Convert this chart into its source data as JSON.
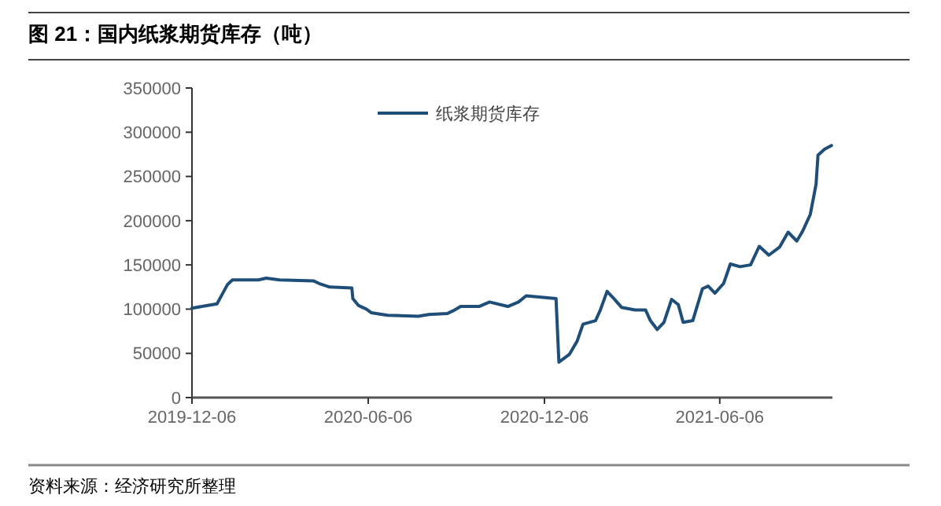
{
  "chart_data": {
    "type": "line",
    "title": "图 21：国内纸浆期货库存（吨）",
    "annotations": [
      "资料来源：经济研究所整理"
    ],
    "xlim": [
      "2019-12-06",
      "2021-10-01"
    ],
    "xticks": [
      "2019-12-06",
      "2020-06-06",
      "2020-12-06",
      "2021-06-06"
    ],
    "ylim": [
      0,
      350000
    ],
    "yticks": [
      0,
      50000,
      100000,
      150000,
      200000,
      250000,
      300000,
      350000
    ],
    "grid": false,
    "legend": "top",
    "line_style": "solid",
    "marker": "none",
    "series": [
      {
        "name": "纸浆期货库存",
        "color": "#1f4e79",
        "x": [
          "2019-12-06",
          "2019-12-21",
          "2020-01-01",
          "2020-01-06",
          "2020-01-12",
          "2020-01-17",
          "2020-02-13",
          "2020-02-21",
          "2020-03-06",
          "2020-04-10",
          "2020-04-16",
          "2020-04-27",
          "2020-05-20",
          "2020-05-21",
          "2020-05-27",
          "2020-06-04",
          "2020-06-09",
          "2020-06-26",
          "2020-07-28",
          "2020-08-08",
          "2020-08-27",
          "2020-09-02",
          "2020-09-10",
          "2020-09-29",
          "2020-10-10",
          "2020-10-29",
          "2020-11-09",
          "2020-11-17",
          "2020-12-18",
          "2020-12-21",
          "2021-01-01",
          "2021-01-09",
          "2021-01-15",
          "2021-01-28",
          "2021-02-02",
          "2021-02-09",
          "2021-02-16",
          "2021-02-24",
          "2021-03-10",
          "2021-03-21",
          "2021-03-26",
          "2021-04-02",
          "2021-04-09",
          "2021-04-17",
          "2021-04-24",
          "2021-04-29",
          "2021-05-09",
          "2021-05-19",
          "2021-05-25",
          "2021-06-01",
          "2021-06-10",
          "2021-06-17",
          "2021-06-27",
          "2021-07-08",
          "2021-07-17",
          "2021-07-27",
          "2021-08-07",
          "2021-08-16",
          "2021-08-25",
          "2021-08-31",
          "2021-09-08",
          "2021-09-14",
          "2021-09-16",
          "2021-09-23",
          "2021-09-30"
        ],
        "values": [
          101000,
          104000,
          106000,
          116000,
          128000,
          133000,
          133000,
          135000,
          133000,
          132000,
          129000,
          125000,
          124000,
          112000,
          104000,
          100000,
          96000,
          93000,
          92000,
          94000,
          95000,
          98000,
          103000,
          103000,
          108000,
          103000,
          108000,
          115000,
          112000,
          40000,
          49000,
          64000,
          83000,
          87000,
          99000,
          120000,
          112000,
          102000,
          99000,
          99000,
          87000,
          77000,
          85000,
          111000,
          105000,
          85000,
          87000,
          123000,
          126000,
          118000,
          129000,
          151000,
          148000,
          150000,
          171000,
          161000,
          170000,
          187000,
          177000,
          188000,
          207000,
          241000,
          274000,
          281000,
          285000
        ]
      }
    ]
  }
}
